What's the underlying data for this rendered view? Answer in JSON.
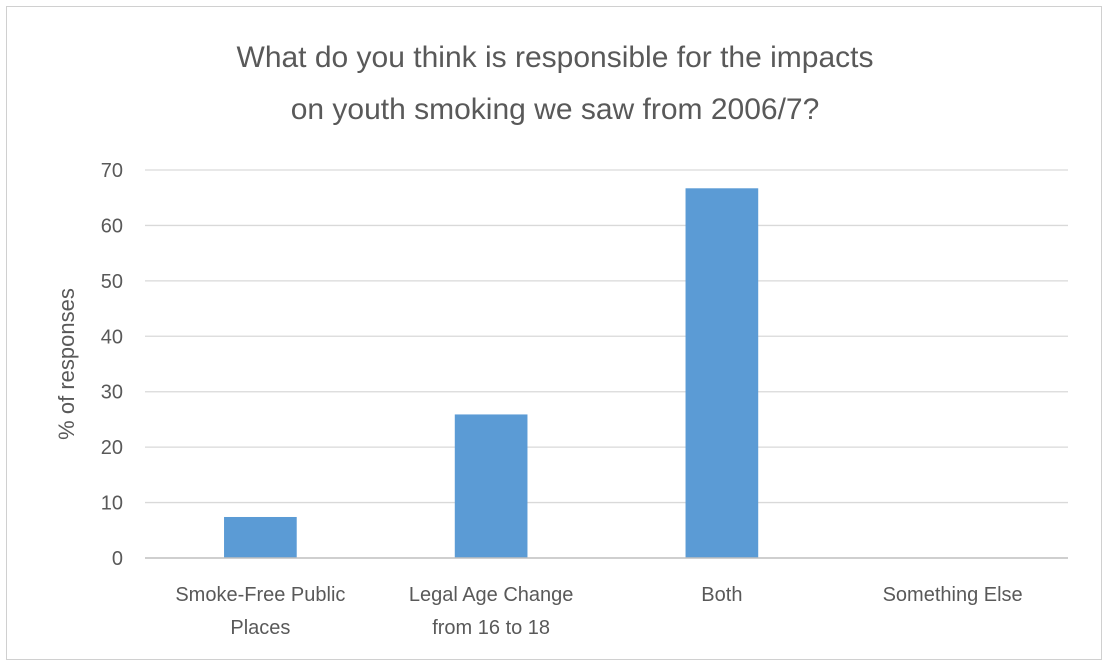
{
  "chart_data": {
    "type": "bar",
    "title_lines": [
      "What do you think is responsible for the impacts",
      "on youth smoking we saw from 2006/7?"
    ],
    "xlabel": "",
    "ylabel": "% of responses",
    "ylim": [
      0,
      70
    ],
    "yticks": [
      0,
      10,
      20,
      30,
      40,
      50,
      60,
      70
    ],
    "grid": true,
    "legend": "none",
    "categories": [
      [
        "Smoke-Free Public",
        "Places"
      ],
      [
        "Legal Age Change",
        "from 16 to 18"
      ],
      [
        "Both"
      ],
      [
        "Something Else"
      ]
    ],
    "values": [
      7.4,
      25.9,
      66.7,
      0
    ],
    "colors": {
      "bar": "#5b9bd5",
      "grid": "#d9d9d9",
      "axis": "#bfbfbf",
      "text": "#595959"
    }
  }
}
